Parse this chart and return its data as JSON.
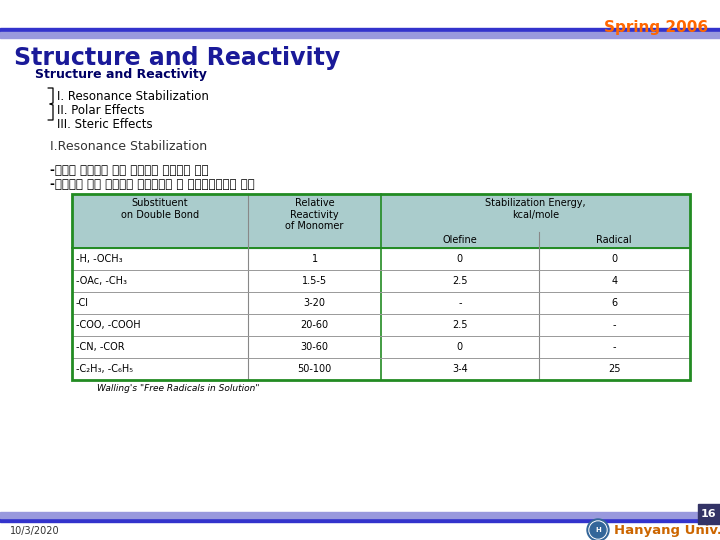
{
  "title": "Structure and Reactivity",
  "spring": "Spring 2006",
  "subtitle": "Structure and Reactivity",
  "outline_items": [
    "I. Resonance Stabilization",
    "II. Polar Effects",
    "III. Steric Effects"
  ],
  "section_title": "I.Resonance Stabilization",
  "korean_line1": "-라디칼 안정화가 공명 안정성을 지배하는 경향",
  "korean_line2": "-라디칼이 그에 상응하는 모노머보다 더 공명안정화하는 경향",
  "col_headers": [
    "Substituent\non Double Bond",
    "Relative\nReactivity\nof Monomer",
    "Stabilization Energy,\nkcal/mole"
  ],
  "sub_headers": [
    "Olefine",
    "Radical"
  ],
  "table_data": [
    [
      "-H, -OCH₃",
      "1",
      "0",
      "0"
    ],
    [
      "-OAc, -CH₃",
      "1.5-5",
      "2.5",
      "4"
    ],
    [
      "-Cl",
      "3-20",
      "-",
      "6"
    ],
    [
      "-COO, -COOH",
      "20-60",
      "2.5",
      "-"
    ],
    [
      "-CN, -COR",
      "30-60",
      "0",
      "-"
    ],
    [
      "-C₂H₃, -C₆H₅",
      "50-100",
      "3-4",
      "25"
    ]
  ],
  "footer_left": "10/3/2020",
  "footer_ref": "Walling's \"Free Radicals in Solution\"",
  "footer_right": "Hanyang Univ.",
  "page_num": "16",
  "header_line_color": "#3333cc",
  "title_color": "#1a1a99",
  "spring_color": "#ff6600",
  "table_header_bg": "#aacccc",
  "table_border_color": "#228B22",
  "background_color": "#ffffff",
  "subtitle_color": "#000066",
  "outline_color": "#000000",
  "section_color": "#333333",
  "korean_color": "#000000",
  "footer_bar_color": "#3333cc",
  "footer_text_color": "#333333",
  "hanyang_color": "#cc6600"
}
